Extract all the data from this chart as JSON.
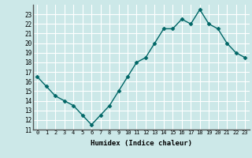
{
  "x": [
    0,
    1,
    2,
    3,
    4,
    5,
    6,
    7,
    8,
    9,
    10,
    11,
    12,
    13,
    14,
    15,
    16,
    17,
    18,
    19,
    20,
    21,
    22,
    23
  ],
  "y": [
    16.5,
    15.5,
    14.5,
    14.0,
    13.5,
    12.5,
    11.5,
    12.5,
    13.5,
    15.0,
    16.5,
    18.0,
    18.5,
    20.0,
    21.5,
    21.5,
    22.5,
    22.0,
    23.5,
    22.0,
    21.5,
    20.0,
    19.0,
    18.5
  ],
  "xlim": [
    -0.5,
    23.5
  ],
  "ylim": [
    11,
    24
  ],
  "yticks": [
    11,
    12,
    13,
    14,
    15,
    16,
    17,
    18,
    19,
    20,
    21,
    22,
    23
  ],
  "xtick_labels": [
    "0",
    "1",
    "2",
    "3",
    "4",
    "5",
    "6",
    "7",
    "8",
    "9",
    "10",
    "11",
    "12",
    "13",
    "14",
    "15",
    "16",
    "17",
    "18",
    "19",
    "20",
    "21",
    "22",
    "23"
  ],
  "xlabel": "Humidex (Indice chaleur)",
  "line_color": "#006666",
  "marker": "D",
  "bg_color": "#cce8e8",
  "grid_color": "#ffffff",
  "title": ""
}
